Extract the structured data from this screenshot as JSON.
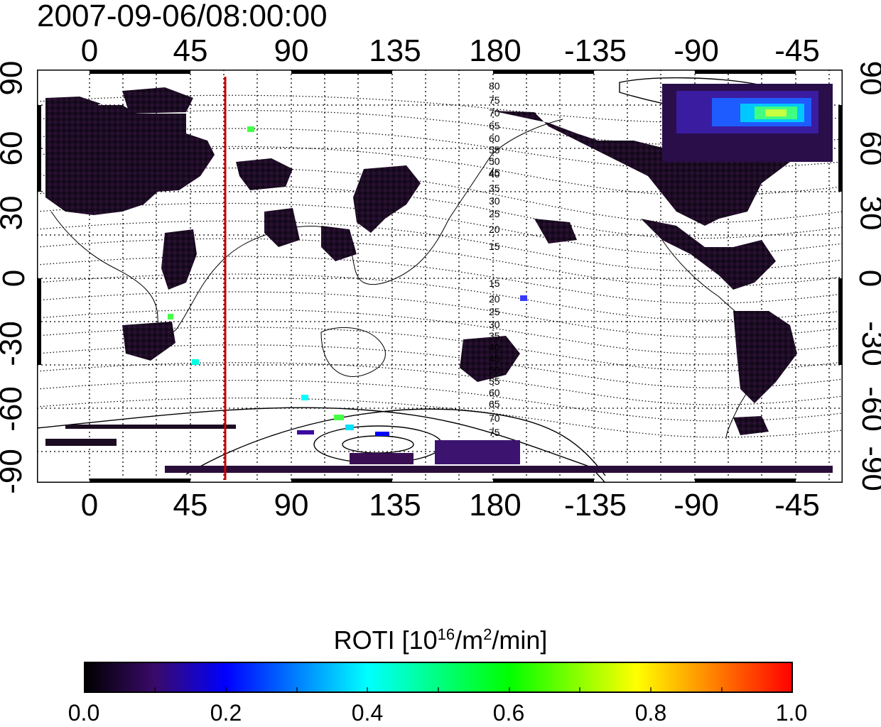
{
  "title": "2007-09-06/08:00:00",
  "map": {
    "lon_ticks_top": [
      "0",
      "45",
      "90",
      "135",
      "180",
      "-135",
      "-90",
      "-45"
    ],
    "lon_ticks_bottom": [
      "0",
      "45",
      "90",
      "135",
      "180",
      "-135",
      "-90",
      "-45"
    ],
    "lat_ticks_left": [
      "90",
      "60",
      "30",
      "0",
      "-30",
      "-60",
      "-90"
    ],
    "lat_ticks_right": [
      "90",
      "60",
      "30",
      "0",
      "-30",
      "-60",
      "-90"
    ],
    "contour_labels": [
      "80",
      "75",
      "70",
      "65",
      "60",
      "55",
      "50",
      "45",
      "40",
      "35",
      "30",
      "25",
      "20",
      "15",
      "15",
      "20",
      "25",
      "30",
      "35",
      "40",
      "45",
      "50",
      "55",
      "60",
      "65",
      "70",
      "75"
    ],
    "marker_line_longitude": 60,
    "marker_line_color": "#cc0000",
    "land_color": "#1a0a1e"
  },
  "colorbar": {
    "title": "ROTI  [10",
    "title_sup1": "16",
    "title_mid": "/m",
    "title_sup2": "2",
    "title_end": "/min]",
    "ticks": [
      "0.0",
      "0.2",
      "0.4",
      "0.6",
      "0.8",
      "1.0"
    ],
    "colors": [
      "#000000",
      "#3a0a6a",
      "#0000ff",
      "#00ffff",
      "#00ff00",
      "#ffff00",
      "#ff0000"
    ]
  }
}
